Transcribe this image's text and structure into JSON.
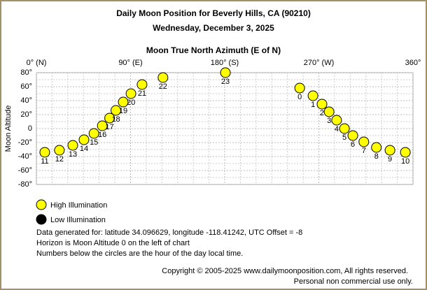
{
  "chart_data": {
    "type": "scatter",
    "title": "Daily Moon Position for Beverly Hills, CA (90210)",
    "subtitle": "Wednesday, December 3, 2025",
    "x_label": "Moon True North Azimuth (E of N)",
    "y_label": "Moon Altitude",
    "xlim": [
      0,
      360
    ],
    "ylim": [
      -80,
      80
    ],
    "xticks": [
      {
        "value": 0,
        "label": "0° (N)"
      },
      {
        "value": 90,
        "label": "90° (E)"
      },
      {
        "value": 180,
        "label": "180° (S)"
      },
      {
        "value": 270,
        "label": "270° (W)"
      },
      {
        "value": 360,
        "label": "360°"
      }
    ],
    "yticks": [
      {
        "value": 80,
        "label": "80°"
      },
      {
        "value": 60,
        "label": "60°"
      },
      {
        "value": 40,
        "label": "40°"
      },
      {
        "value": 20,
        "label": "20°"
      },
      0,
      {
        "value": -20,
        "label": "-20°"
      },
      {
        "value": -40,
        "label": "-40°"
      },
      {
        "value": -60,
        "label": "-60°"
      },
      {
        "value": -80,
        "label": "-80°"
      }
    ],
    "x_minor_grid": [
      15,
      30,
      45,
      60,
      75,
      105,
      120,
      135,
      150,
      165,
      195,
      210,
      225,
      240,
      255,
      285,
      300,
      315,
      330,
      345
    ],
    "y_minor_grid": [
      70,
      50,
      30,
      10,
      -10,
      -30,
      -50,
      -70
    ],
    "grid": true,
    "series": [
      {
        "name": "High Illumination",
        "color": "#ffff00",
        "x": [
          251.7,
          264.4,
          273,
          279.8,
          287,
          294.5,
          302.5,
          313,
          325,
          338,
          352.7,
          8,
          22,
          34.8,
          45.5,
          55,
          63,
          70,
          76,
          83,
          90.4,
          101,
          121,
          180.7
        ],
        "values": [
          58,
          47,
          35,
          24,
          12,
          0,
          -10,
          -19,
          -27,
          -31,
          -34,
          -34,
          -31,
          -24,
          -16,
          -7,
          4,
          15,
          26,
          38,
          50,
          63,
          73,
          80
        ],
        "point_labels": [
          "0",
          "1",
          "2",
          "3",
          "4",
          "5",
          "6",
          "7",
          "8",
          "9",
          "10",
          "11",
          "12",
          "13",
          "14",
          "15",
          "16",
          "17",
          "18",
          "19",
          "20",
          "21",
          "22",
          "23"
        ]
      },
      {
        "name": "Low Illumination",
        "color": "#000000",
        "x": [],
        "values": [],
        "point_labels": []
      }
    ],
    "notes": [
      "Data generated for: latitude 34.096629, longitude -118.41242, UTC Offset = -8",
      "Horizon is Moon Altitude 0 on the left of chart",
      "Numbers below the circles are the hour of the day local time."
    ],
    "copyright": [
      "Copyright © 2005-2025 www.dailymoonposition.com, All rights reserved.",
      "Personal non commercial use only."
    ]
  }
}
